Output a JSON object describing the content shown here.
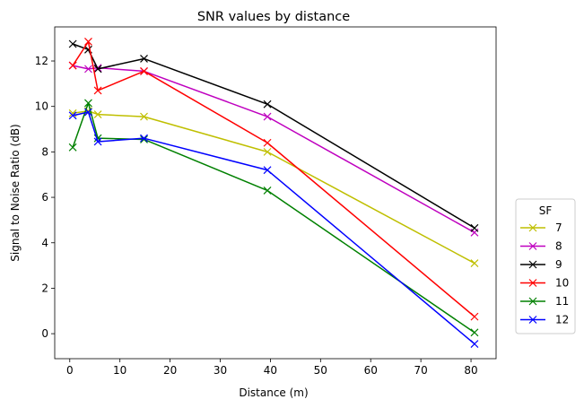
{
  "chart_data": {
    "type": "line",
    "title": "SNR values by distance",
    "xlabel": "Distance (m)",
    "ylabel": "Signal to Noise Ratio (dB)",
    "xlim": [
      -3,
      85
    ],
    "ylim": [
      -1.1,
      13.5
    ],
    "xticks": [
      0,
      10,
      20,
      30,
      40,
      50,
      60,
      70,
      80
    ],
    "yticks": [
      0,
      2,
      4,
      6,
      8,
      10,
      12
    ],
    "grid": false,
    "marker": "x",
    "legend": {
      "title": "SF",
      "placement": "right, outside plot area"
    },
    "x": [
      0.6,
      3.7,
      5.6,
      14.8,
      39.4,
      80.7
    ],
    "series": [
      {
        "name": "7",
        "color": "#bfbf00",
        "values": [
          9.7,
          9.8,
          9.65,
          9.55,
          8.0,
          3.1
        ]
      },
      {
        "name": "8",
        "color": "#bf00bf",
        "values": [
          11.8,
          11.65,
          11.7,
          11.55,
          9.55,
          4.45
        ]
      },
      {
        "name": "9",
        "color": "#000000",
        "values": [
          12.75,
          12.5,
          11.65,
          12.1,
          10.1,
          4.65
        ]
      },
      {
        "name": "10",
        "color": "#ff0000",
        "values": [
          11.8,
          12.85,
          10.7,
          11.55,
          8.4,
          0.75
        ]
      },
      {
        "name": "11",
        "color": "#008000",
        "values": [
          8.2,
          10.15,
          8.6,
          8.55,
          6.3,
          0.05
        ]
      },
      {
        "name": "12",
        "color": "#0000ff",
        "values": [
          9.6,
          9.75,
          8.45,
          8.6,
          7.2,
          -0.45
        ]
      }
    ]
  }
}
